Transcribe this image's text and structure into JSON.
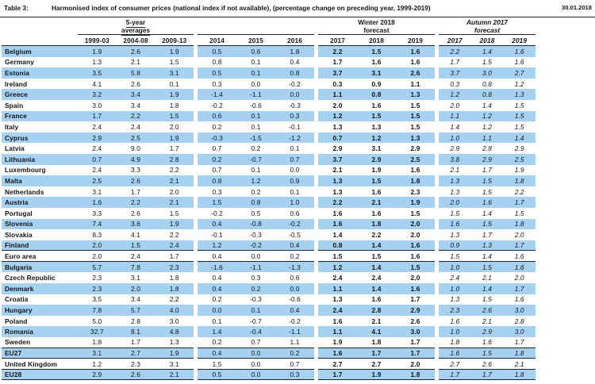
{
  "title": {
    "label": "Table 3:",
    "text": "Harmonised index of consumer prices (national index if not available), (percentage change on preceding year, 1999-2019)",
    "date": "30.01.2018"
  },
  "table": {
    "header": {
      "group1": {
        "line1": "5-year",
        "line2": "averages",
        "years": [
          "1999-03",
          "2004-08",
          "2009-13"
        ]
      },
      "group2": {
        "years": [
          "2014",
          "2015",
          "2016"
        ]
      },
      "group3": {
        "line1": "Winter 2018",
        "line2": "forecast",
        "years": [
          "2017",
          "2018",
          "2019"
        ]
      },
      "group4": {
        "line1": "Autumn 2017",
        "line2": "forecast",
        "years": [
          "2017",
          "2018",
          "2019"
        ]
      }
    },
    "rows": [
      {
        "name": "Belgium",
        "values": [
          "1.9",
          "2.6",
          "1.9",
          "0.5",
          "0.6",
          "1.8",
          "2.2",
          "1.5",
          "1.6",
          "2.2",
          "1.4",
          "1.6"
        ]
      },
      {
        "name": "Germany",
        "values": [
          "1.3",
          "2.1",
          "1.5",
          "0.8",
          "0.1",
          "0.4",
          "1.7",
          "1.6",
          "1.6",
          "1.7",
          "1.5",
          "1.6"
        ]
      },
      {
        "name": "Estonia",
        "values": [
          "3.5",
          "5.8",
          "3.1",
          "0.5",
          "0.1",
          "0.8",
          "3.7",
          "3.1",
          "2.6",
          "3.7",
          "3.0",
          "2.7"
        ]
      },
      {
        "name": "Ireland",
        "values": [
          "4.1",
          "2.6",
          "0.1",
          "0.3",
          "0.0",
          "-0.2",
          "0.3",
          "0.9",
          "1.1",
          "0.3",
          "0.8",
          "1.2"
        ]
      },
      {
        "name": "Greece",
        "values": [
          "3.2",
          "3.4",
          "1.9",
          "-1.4",
          "-1.1",
          "0.0",
          "1.1",
          "0.8",
          "1.3",
          "1.2",
          "0.8",
          "1.3"
        ]
      },
      {
        "name": "Spain",
        "values": [
          "3.0",
          "3.4",
          "1.8",
          "-0.2",
          "-0.6",
          "-0.3",
          "2.0",
          "1.6",
          "1.5",
          "2.0",
          "1.4",
          "1.5"
        ]
      },
      {
        "name": "France",
        "values": [
          "1.7",
          "2.2",
          "1.5",
          "0.6",
          "0.1",
          "0.3",
          "1.2",
          "1.5",
          "1.5",
          "1.1",
          "1.2",
          "1.5"
        ]
      },
      {
        "name": "Italy",
        "values": [
          "2.4",
          "2.4",
          "2.0",
          "0.2",
          "0.1",
          "-0.1",
          "1.3",
          "1.3",
          "1.5",
          "1.4",
          "1.2",
          "1.5"
        ]
      },
      {
        "name": "Cyprus",
        "values": [
          "2.9",
          "2.5",
          "1.9",
          "-0.3",
          "-1.5",
          "-1.2",
          "0.7",
          "1.2",
          "1.3",
          "1.0",
          "1.1",
          "1.4"
        ]
      },
      {
        "name": "Latvia",
        "values": [
          "2.4",
          "9.0",
          "1.7",
          "0.7",
          "0.2",
          "0.1",
          "2.9",
          "3.1",
          "2.9",
          "2.9",
          "2.8",
          "2.9"
        ]
      },
      {
        "name": "Lithuania",
        "values": [
          "0.7",
          "4.9",
          "2.8",
          "0.2",
          "-0.7",
          "0.7",
          "3.7",
          "2.9",
          "2.5",
          "3.8",
          "2.9",
          "2.5"
        ]
      },
      {
        "name": "Luxembourg",
        "values": [
          "2.4",
          "3.3",
          "2.2",
          "0.7",
          "0.1",
          "0.0",
          "2.1",
          "1.9",
          "1.6",
          "2.1",
          "1.7",
          "1.9"
        ]
      },
      {
        "name": "Malta",
        "values": [
          "2.5",
          "2.6",
          "2.1",
          "0.8",
          "1.2",
          "0.9",
          "1.3",
          "1.5",
          "1.8",
          "1.3",
          "1.5",
          "1.8"
        ]
      },
      {
        "name": "Netherlands",
        "values": [
          "3.1",
          "1.7",
          "2.0",
          "0.3",
          "0.2",
          "0.1",
          "1.3",
          "1.6",
          "2.3",
          "1.3",
          "1.5",
          "2.2"
        ]
      },
      {
        "name": "Austria",
        "values": [
          "1.6",
          "2.2",
          "2.1",
          "1.5",
          "0.8",
          "1.0",
          "2.2",
          "2.1",
          "1.9",
          "2.0",
          "1.6",
          "1.7"
        ]
      },
      {
        "name": "Portugal",
        "values": [
          "3.3",
          "2.6",
          "1.5",
          "-0.2",
          "0.5",
          "0.6",
          "1.6",
          "1.6",
          "1.5",
          "1.5",
          "1.4",
          "1.5"
        ]
      },
      {
        "name": "Slovenia",
        "values": [
          "7.4",
          "3.6",
          "1.9",
          "0.4",
          "-0.8",
          "-0.2",
          "1.6",
          "1.8",
          "2.0",
          "1.6",
          "1.5",
          "1.8"
        ]
      },
      {
        "name": "Slovakia",
        "values": [
          "8.3",
          "4.1",
          "2.2",
          "-0.1",
          "-0.3",
          "-0.5",
          "1.4",
          "2.2",
          "2.0",
          "1.3",
          "1.7",
          "2.0"
        ]
      },
      {
        "name": "Finland",
        "values": [
          "2.0",
          "1.5",
          "2.4",
          "1.2",
          "-0.2",
          "0.4",
          "0.8",
          "1.4",
          "1.6",
          "0.9",
          "1.3",
          "1.7"
        ],
        "divider": true
      },
      {
        "name": "Euro area",
        "values": [
          "2.0",
          "2.4",
          "1.7",
          "0.4",
          "0.0",
          "0.2",
          "1.5",
          "1.5",
          "1.6",
          "1.5",
          "1.4",
          "1.6"
        ],
        "divider": true
      },
      {
        "name": "Bulgaria",
        "values": [
          "5.7",
          "7.8",
          "2.3",
          "-1.6",
          "-1.1",
          "-1.3",
          "1.2",
          "1.4",
          "1.5",
          "1.0",
          "1.5",
          "1.6"
        ]
      },
      {
        "name": "Czech Republic",
        "values": [
          "2.3",
          "3.1",
          "1.8",
          "0.4",
          "0.3",
          "0.6",
          "2.4",
          "2.4",
          "2.0",
          "2.4",
          "2.1",
          "2.0"
        ]
      },
      {
        "name": "Denmark",
        "values": [
          "2.3",
          "2.0",
          "1.8",
          "0.4",
          "0.2",
          "0.0",
          "1.1",
          "1.4",
          "1.6",
          "1.0",
          "1.4",
          "1.7"
        ]
      },
      {
        "name": "Croatia",
        "values": [
          "3.5",
          "3.4",
          "2.2",
          "0.2",
          "-0.3",
          "-0.6",
          "1.3",
          "1.6",
          "1.7",
          "1.3",
          "1.5",
          "1.6"
        ]
      },
      {
        "name": "Hungary",
        "values": [
          "7.8",
          "5.7",
          "4.0",
          "0.0",
          "0.1",
          "0.4",
          "2.4",
          "2.8",
          "2.9",
          "2.3",
          "2.6",
          "3.0"
        ]
      },
      {
        "name": "Poland",
        "values": [
          "5.0",
          "2.8",
          "3.0",
          "0.1",
          "-0.7",
          "-0.2",
          "1.6",
          "2.1",
          "2.6",
          "1.6",
          "2.1",
          "2.8"
        ]
      },
      {
        "name": "Romania",
        "values": [
          "32.7",
          "8.1",
          "4.8",
          "1.4",
          "-0.4",
          "-1.1",
          "1.1",
          "4.1",
          "3.0",
          "1.0",
          "2.9",
          "3.0"
        ]
      },
      {
        "name": "Sweden",
        "values": [
          "1.8",
          "1.7",
          "1.3",
          "0.2",
          "0.7",
          "1.1",
          "1.9",
          "1.8",
          "1.7",
          "1.8",
          "1.6",
          "1.7"
        ],
        "divider": true
      },
      {
        "name": "EU27",
        "values": [
          "3.1",
          "2.7",
          "1.9",
          "0.4",
          "0.0",
          "0.2",
          "1.6",
          "1.7",
          "1.7",
          "1.6",
          "1.5",
          "1.8"
        ],
        "divider": true
      },
      {
        "name": "United Kingdom",
        "values": [
          "1.2",
          "2.3",
          "3.1",
          "1.5",
          "0.0",
          "0.7",
          "2.7",
          "2.7",
          "2.0",
          "2.7",
          "2.6",
          "2.1"
        ],
        "divider": true
      },
      {
        "name": "EU28",
        "values": [
          "2.9",
          "2.6",
          "2.1",
          "0.5",
          "0.0",
          "0.3",
          "1.7",
          "1.9",
          "1.8",
          "1.7",
          "1.7",
          "1.8"
        ],
        "divider": true
      }
    ]
  },
  "colors": {
    "stripe": "#a7d1f1",
    "border": "#1e252b",
    "text": "#111418"
  }
}
